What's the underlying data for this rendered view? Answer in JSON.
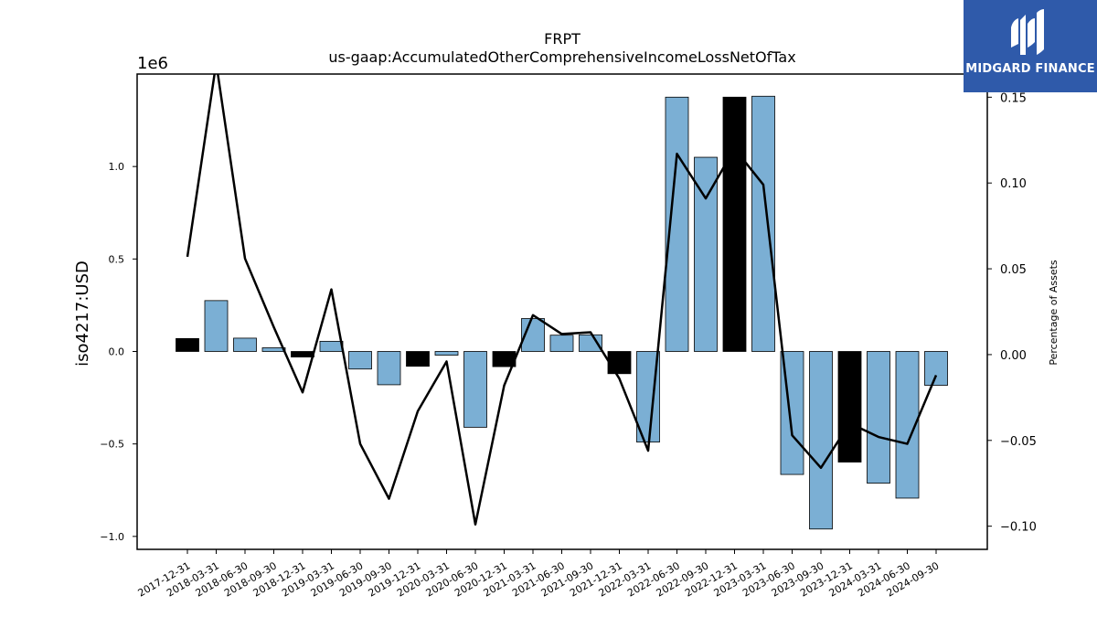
{
  "chart_data": {
    "type": "bar",
    "title": "FRPT",
    "subtitle": "us-gaap:AccumulatedOtherComprehensiveIncomeLossNetOfTax",
    "ylabel": "iso4217:USD",
    "y2label": "Percentage of Assets",
    "y_scale_note": "1e6",
    "ylim": [
      -1070000,
      1500000
    ],
    "y2lim": [
      -0.1135,
      0.1635
    ],
    "yticks": [
      -1.0,
      -0.5,
      0.0,
      0.5,
      1.0
    ],
    "y2ticks": [
      -0.1,
      -0.05,
      0.0,
      0.05,
      0.1,
      0.15
    ],
    "categories": [
      "2017-12-31",
      "2018-03-31",
      "2018-06-30",
      "2018-09-30",
      "2018-12-31",
      "2019-03-31",
      "2019-06-30",
      "2019-09-30",
      "2019-12-31",
      "2020-03-31",
      "2020-06-30",
      "2020-12-31",
      "2021-03-31",
      "2021-06-30",
      "2021-09-30",
      "2021-12-31",
      "2022-03-31",
      "2022-06-30",
      "2022-09-30",
      "2022-12-31",
      "2023-03-31",
      "2023-06-30",
      "2023-09-30",
      "2023-12-31",
      "2024-03-31",
      "2024-06-30",
      "2024-09-30"
    ],
    "series": [
      {
        "type": "bar",
        "values": [
          70000,
          275000,
          72000,
          20000,
          -30000,
          55000,
          -95000,
          -180000,
          -80000,
          -20000,
          -410000,
          -82000,
          178000,
          88000,
          90000,
          -120000,
          -490000,
          1375000,
          1050000,
          1375000,
          1380000,
          -665000,
          -960000,
          -598000,
          -712000,
          -793000,
          -183000
        ],
        "highlight": [
          true,
          false,
          false,
          false,
          true,
          false,
          false,
          false,
          true,
          false,
          false,
          true,
          false,
          false,
          false,
          true,
          false,
          false,
          false,
          true,
          false,
          false,
          false,
          true,
          false,
          false,
          false
        ]
      },
      {
        "type": "line",
        "axis": "right",
        "values": [
          0.057,
          0.17,
          0.056,
          0.016,
          -0.022,
          0.038,
          -0.052,
          -0.084,
          -0.033,
          -0.004,
          -0.099,
          -0.018,
          0.023,
          0.012,
          0.013,
          -0.014,
          -0.056,
          0.117,
          0.091,
          0.12,
          0.099,
          -0.047,
          -0.066,
          -0.04,
          -0.048,
          -0.052,
          -0.012
        ]
      }
    ],
    "colors": {
      "bar": "#7bafd4",
      "bar_highlight": "#000000",
      "line": "#000000"
    },
    "grid": false,
    "legend": "none"
  },
  "brand": {
    "name": "MIDGARD FINANCE",
    "icon": "midgard-logo-icon"
  }
}
